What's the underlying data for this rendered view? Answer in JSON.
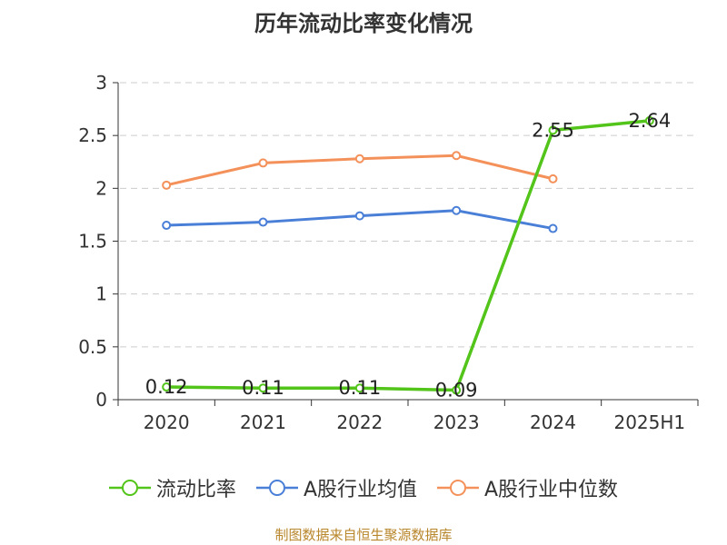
{
  "chart_data": {
    "type": "line",
    "title": "历年流动比率变化情况",
    "categories": [
      "2020",
      "2021",
      "2022",
      "2023",
      "2024",
      "2025H1"
    ],
    "ylim": [
      0,
      3
    ],
    "yticks": [
      "0",
      "0.5",
      "1",
      "1.5",
      "2",
      "2.5",
      "3"
    ],
    "grid": true,
    "legend_position": "bottom",
    "series": [
      {
        "name": "流动比率",
        "color": "#52c41a",
        "values": [
          0.12,
          0.11,
          0.11,
          0.09,
          2.55,
          2.64
        ],
        "labels": [
          "0.12",
          "0.11",
          "0.11",
          "0.09",
          "2.55",
          "2.64"
        ]
      },
      {
        "name": "A股行业均值",
        "color": "#4a7fd8",
        "values": [
          1.65,
          1.68,
          1.74,
          1.79,
          1.62,
          null
        ]
      },
      {
        "name": "A股行业中位数",
        "color": "#f4915a",
        "values": [
          2.03,
          2.24,
          2.28,
          2.31,
          2.09,
          null
        ]
      }
    ]
  },
  "footer": "制图数据来自恒生聚源数据库"
}
